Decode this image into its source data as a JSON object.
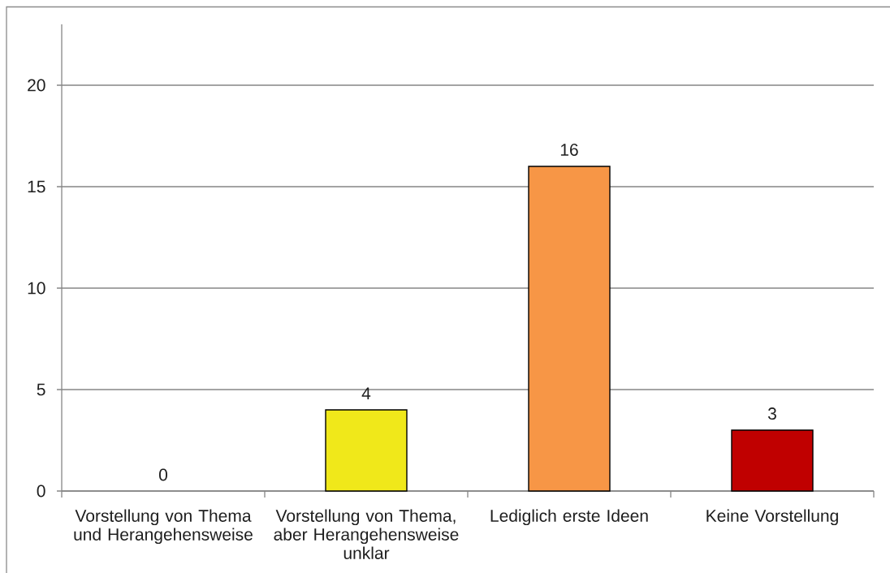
{
  "chart_data": {
    "type": "bar",
    "categories": [
      "Vorstellung von Thema und Herangehensweise",
      "Vorstellung von Thema, aber Herangehensweise unklar",
      "Lediglich erste Ideen",
      "Keine Vorstellung"
    ],
    "values": [
      0,
      4,
      16,
      3
    ],
    "colors": [
      null,
      "#f0e81a",
      "#f79646",
      "#c00000"
    ],
    "ylim": [
      0,
      23
    ],
    "yticks": [
      0,
      5,
      10,
      15,
      20
    ],
    "grid": "y",
    "data_labels": true
  }
}
